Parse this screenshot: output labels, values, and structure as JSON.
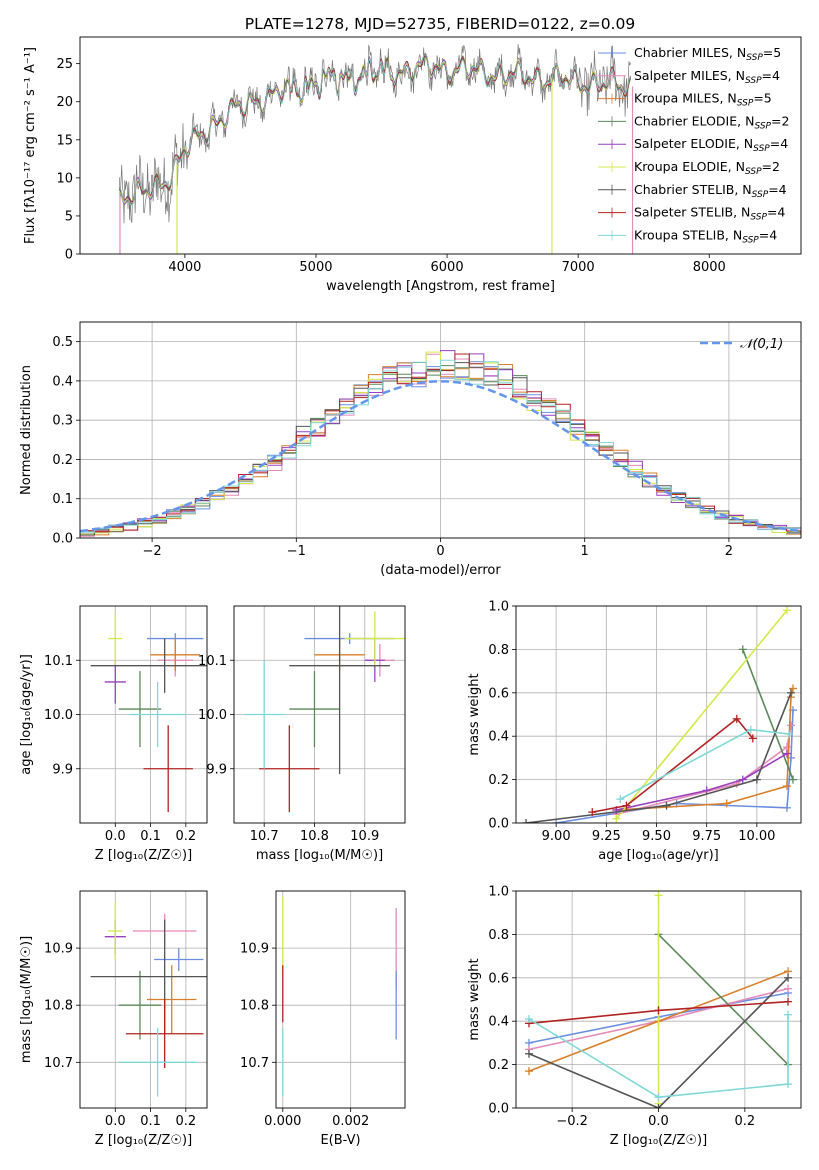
{
  "colors": {
    "chabrier_miles": "#6b8fe0",
    "salpeter_miles": "#e68ab8",
    "kroupa_miles": "#d97f2a",
    "chabrier_elodie": "#5a8a5a",
    "salpeter_elodie": "#9a3fc0",
    "kroupa_elodie": "#d3e84a",
    "chabrier_stelib": "#555555",
    "salpeter_stelib": "#b22222",
    "kroupa_stelib": "#7fd8d8",
    "normal": "#6495ed",
    "grid": "#b0b0b0"
  },
  "chart_data": [
    {
      "type": "line",
      "title": "PLATE=1278, MJD=52735, FIBERID=0122, z=0.09",
      "xlabel": "wavelength [Angstrom, rest frame]",
      "ylabel": "Flux [fλ10⁻¹⁷ erg cm⁻² s⁻¹ A⁻¹]",
      "xlim": [
        3200,
        8700
      ],
      "ylim": [
        0,
        28.5
      ],
      "xticks": [
        4000,
        5000,
        6000,
        7000,
        8000
      ],
      "yticks": [
        0,
        5,
        10,
        15,
        20,
        25
      ],
      "grid": false,
      "legend_position": "right",
      "legend": [
        "Chabrier MILES, N_SSP=5",
        "Salpeter MILES, N_SSP=4",
        "Kroupa MILES, N_SSP=5",
        "Chabrier ELODIE, N_SSP=2",
        "Salpeter ELODIE, N_SSP=4",
        "Kroupa ELODIE, N_SSP=2",
        "Chabrier STELIB, N_SSP=4",
        "Salpeter STELIB, N_SSP=4",
        "Kroupa STELIB, N_SSP=4"
      ],
      "spectrum_envelope": {
        "x": [
          3500,
          3700,
          3900,
          4000,
          4200,
          4500,
          4800,
          5000,
          5300,
          5600,
          5900,
          6200,
          6500,
          6800,
          7100,
          7400
        ],
        "y": [
          7.5,
          8.0,
          10.5,
          13.5,
          17.0,
          20.0,
          21.5,
          22.5,
          23.5,
          24.0,
          24.5,
          24.0,
          23.5,
          23.0,
          22.5,
          22.0
        ]
      }
    },
    {
      "type": "bar",
      "xlabel": "(data-model)/error",
      "ylabel": "Normed distribution",
      "xlim": [
        -2.5,
        2.5
      ],
      "ylim": [
        0,
        0.55
      ],
      "xticks": [
        -2,
        -1,
        0,
        1,
        2
      ],
      "yticks": [
        0.0,
        0.1,
        0.2,
        0.3,
        0.4,
        0.5
      ],
      "grid": true,
      "legend_position": "top-right",
      "legend": [
        "𝒩(0,1)"
      ],
      "bin_width": 0.1,
      "normal": {
        "mean": 0,
        "sigma": 1
      }
    },
    {
      "type": "scatter",
      "xlabel": "Z [log₁₀(Z/Z☉)]",
      "ylabel": "age  [log₁₀(age/yr)]",
      "xlim": [
        -0.1,
        0.26
      ],
      "ylim": [
        9.8,
        10.2
      ],
      "xticks": [
        0.0,
        0.1,
        0.2
      ],
      "yticks": [
        9.9,
        10.0,
        10.1
      ],
      "grid": true,
      "points": [
        {
          "model": "chabrier_miles",
          "x": 0.17,
          "xerr": 0.08,
          "y": 10.14,
          "yerr": 0.01
        },
        {
          "model": "salpeter_miles",
          "x": 0.17,
          "xerr": 0.05,
          "y": 10.1,
          "yerr": 0.03
        },
        {
          "model": "kroupa_miles",
          "x": 0.17,
          "xerr": 0.07,
          "y": 10.11,
          "yerr": 0.03
        },
        {
          "model": "chabrier_elodie",
          "x": 0.07,
          "xerr": 0.06,
          "y": 10.01,
          "yerr": 0.07
        },
        {
          "model": "salpeter_elodie",
          "x": 0.0,
          "xerr": 0.03,
          "y": 10.06,
          "yerr": 0.04
        },
        {
          "model": "kroupa_elodie",
          "x": 0.0,
          "xerr": 0.02,
          "y": 10.14,
          "yerr": 0.05
        },
        {
          "model": "chabrier_stelib",
          "x": 0.14,
          "xerr": 0.21,
          "y": 10.09,
          "yerr": 0.05
        },
        {
          "model": "salpeter_stelib",
          "x": 0.15,
          "xerr": 0.07,
          "y": 9.9,
          "yerr": 0.08
        },
        {
          "model": "kroupa_stelib",
          "x": 0.12,
          "xerr": 0.08,
          "y": 10.0,
          "yerr": 0.06
        }
      ]
    },
    {
      "type": "scatter",
      "xlabel": "mass [log₁₀(M/M☉)]",
      "ylabel": "",
      "xlim": [
        10.64,
        10.98
      ],
      "ylim": [
        9.8,
        10.2
      ],
      "xticks": [
        10.7,
        10.8,
        10.9
      ],
      "yticks": [
        9.9,
        10.0,
        10.1
      ],
      "grid": true,
      "points": [
        {
          "model": "chabrier_miles",
          "x": 10.87,
          "xerr": 0.09,
          "y": 10.14,
          "yerr": 0.01
        },
        {
          "model": "salpeter_miles",
          "x": 10.93,
          "xerr": 0.03,
          "y": 10.1,
          "yerr": 0.03
        },
        {
          "model": "kroupa_miles",
          "x": 10.85,
          "xerr": 0.05,
          "y": 10.11,
          "yerr": 0.03
        },
        {
          "model": "chabrier_elodie",
          "x": 10.8,
          "xerr": 0.05,
          "y": 10.01,
          "yerr": 0.07
        },
        {
          "model": "salpeter_elodie",
          "x": 10.92,
          "xerr": 0.02,
          "y": 10.1,
          "yerr": 0.04
        },
        {
          "model": "kroupa_elodie",
          "x": 10.92,
          "xerr": 0.06,
          "y": 10.14,
          "yerr": 0.05
        },
        {
          "model": "chabrier_stelib",
          "x": 10.85,
          "xerr": 0.1,
          "y": 10.09,
          "yerr": 0.2
        },
        {
          "model": "salpeter_stelib",
          "x": 10.75,
          "xerr": 0.06,
          "y": 9.9,
          "yerr": 0.08
        },
        {
          "model": "kroupa_stelib",
          "x": 10.7,
          "xerr": 0.04,
          "y": 10.0,
          "yerr": 0.1
        }
      ]
    },
    {
      "type": "line",
      "xlabel": "age  [log₁₀(age/yr)]",
      "ylabel": "mass weight",
      "xlim": [
        8.8,
        10.22
      ],
      "ylim": [
        0,
        1
      ],
      "xticks": [
        9.0,
        9.25,
        9.5,
        9.75,
        10.0
      ],
      "yticks": [
        0.0,
        0.2,
        0.4,
        0.6,
        0.8,
        1.0
      ],
      "grid": true,
      "series": [
        {
          "model": "chabrier_miles",
          "x": [
            9.0,
            9.6,
            10.15,
            10.17,
            10.18
          ],
          "y": [
            0.0,
            0.09,
            0.07,
            0.3,
            0.52
          ]
        },
        {
          "model": "salpeter_miles",
          "x": [
            9.3,
            9.9,
            10.15,
            10.17
          ],
          "y": [
            0.04,
            0.18,
            0.35,
            0.45
          ]
        },
        {
          "model": "kroupa_miles",
          "x": [
            9.3,
            9.85,
            10.15,
            10.17,
            10.18
          ],
          "y": [
            0.06,
            0.09,
            0.17,
            0.58,
            0.62
          ]
        },
        {
          "model": "chabrier_elodie",
          "x": [
            9.93,
            10.18
          ],
          "y": [
            0.8,
            0.2
          ]
        },
        {
          "model": "salpeter_elodie",
          "x": [
            9.3,
            9.75,
            9.93,
            10.15
          ],
          "y": [
            0.06,
            0.15,
            0.2,
            0.32
          ]
        },
        {
          "model": "kroupa_elodie",
          "x": [
            9.3,
            10.15
          ],
          "y": [
            0.02,
            0.98
          ]
        },
        {
          "model": "chabrier_stelib",
          "x": [
            8.85,
            9.55,
            10.0,
            10.17
          ],
          "y": [
            0.0,
            0.08,
            0.2,
            0.6
          ]
        },
        {
          "model": "salpeter_stelib",
          "x": [
            9.18,
            9.35,
            9.9,
            9.98
          ],
          "y": [
            0.05,
            0.08,
            0.48,
            0.39
          ]
        },
        {
          "model": "kroupa_stelib",
          "x": [
            9.32,
            9.97,
            10.16
          ],
          "y": [
            0.11,
            0.43,
            0.41
          ]
        }
      ]
    },
    {
      "type": "scatter",
      "xlabel": "Z [log₁₀(Z/Z☉)]",
      "ylabel": "mass [log₁₀(M/M☉)]",
      "xlim": [
        -0.1,
        0.26
      ],
      "ylim": [
        10.62,
        11.0
      ],
      "xticks": [
        0.0,
        0.1,
        0.2
      ],
      "yticks": [
        10.7,
        10.8,
        10.9
      ],
      "grid": true,
      "points": [
        {
          "model": "chabrier_miles",
          "x": 0.18,
          "xerr": 0.07,
          "y": 10.88,
          "yerr": 0.02
        },
        {
          "model": "salpeter_miles",
          "x": 0.14,
          "xerr": 0.09,
          "y": 10.93,
          "yerr": 0.03
        },
        {
          "model": "kroupa_miles",
          "x": 0.16,
          "xerr": 0.07,
          "y": 10.81,
          "yerr": 0.06
        },
        {
          "model": "chabrier_elodie",
          "x": 0.07,
          "xerr": 0.06,
          "y": 10.8,
          "yerr": 0.06
        },
        {
          "model": "salpeter_elodie",
          "x": 0.0,
          "xerr": 0.03,
          "y": 10.92,
          "yerr": 0.03
        },
        {
          "model": "kroupa_elodie",
          "x": 0.0,
          "xerr": 0.02,
          "y": 10.93,
          "yerr": 0.05
        },
        {
          "model": "chabrier_stelib",
          "x": 0.14,
          "xerr": 0.21,
          "y": 10.85,
          "yerr": 0.1
        },
        {
          "model": "salpeter_stelib",
          "x": 0.14,
          "xerr": 0.11,
          "y": 10.75,
          "yerr": 0.06
        },
        {
          "model": "kroupa_stelib",
          "x": 0.12,
          "xerr": 0.11,
          "y": 10.7,
          "yerr": 0.06
        }
      ]
    },
    {
      "type": "scatter",
      "xlabel": "E(B-V)",
      "ylabel": "",
      "xlim": [
        -0.0002,
        0.0036
      ],
      "ylim": [
        10.62,
        11.0
      ],
      "xticks": [
        0.0,
        0.002
      ],
      "yticks": [
        10.7,
        10.8,
        10.9
      ],
      "grid": true,
      "points": [
        {
          "model": "kroupa_elodie",
          "x": 0.0,
          "xerr": 0.0,
          "y": 10.92,
          "yerr": 0.07
        },
        {
          "model": "salpeter_stelib",
          "x": 0.0,
          "xerr": 0.0,
          "y": 10.82,
          "yerr": 0.05
        },
        {
          "model": "kroupa_stelib",
          "x": 0.0,
          "xerr": 0.0,
          "y": 10.7,
          "yerr": 0.06
        },
        {
          "model": "salpeter_miles",
          "x": 0.00334,
          "xerr": 0.0,
          "y": 10.9,
          "yerr": 0.07
        },
        {
          "model": "chabrier_miles",
          "x": 0.00334,
          "xerr": 0.0,
          "y": 10.8,
          "yerr": 0.06
        }
      ]
    },
    {
      "type": "line",
      "xlabel": "Z [log₁₀(Z/Z☉)]",
      "ylabel": "mass weight",
      "xlim": [
        -0.33,
        0.33
      ],
      "ylim": [
        0,
        1
      ],
      "xticks": [
        -0.2,
        0.0,
        0.2
      ],
      "yticks": [
        0.0,
        0.2,
        0.4,
        0.6,
        0.8,
        1.0
      ],
      "grid": true,
      "series": [
        {
          "model": "chabrier_miles",
          "x": [
            -0.3,
            0.0,
            0.3
          ],
          "y": [
            0.3,
            0.42,
            0.53
          ]
        },
        {
          "model": "salpeter_miles",
          "x": [
            -0.3,
            0.0,
            0.3
          ],
          "y": [
            0.27,
            0.4,
            0.55
          ]
        },
        {
          "model": "kroupa_miles",
          "x": [
            -0.3,
            0.0,
            0.3
          ],
          "y": [
            0.17,
            0.4,
            0.63
          ]
        },
        {
          "model": "chabrier_elodie",
          "x": [
            0.0,
            0.3
          ],
          "y": [
            0.8,
            0.2
          ]
        },
        {
          "model": "kroupa_elodie",
          "x": [
            0.0,
            0.0
          ],
          "y": [
            0.02,
            0.98
          ]
        },
        {
          "model": "chabrier_stelib",
          "x": [
            -0.3,
            0.0,
            0.3
          ],
          "y": [
            0.25,
            0.0,
            0.6
          ]
        },
        {
          "model": "salpeter_stelib",
          "x": [
            -0.3,
            0.0,
            0.3
          ],
          "y": [
            0.39,
            0.45,
            0.49
          ]
        },
        {
          "model": "kroupa_stelib",
          "x": [
            -0.3,
            0.0,
            0.3,
            0.3
          ],
          "y": [
            0.41,
            0.05,
            0.11,
            0.43
          ]
        }
      ]
    }
  ]
}
